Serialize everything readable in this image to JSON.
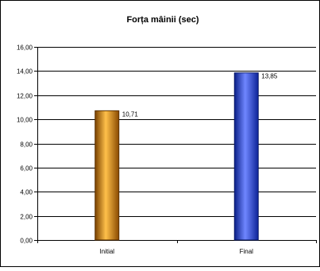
{
  "chart_data": {
    "type": "bar",
    "title": "Forța mâinii (sec)",
    "categories": [
      "Initial",
      "Final"
    ],
    "values": [
      10.71,
      13.85
    ],
    "value_labels": [
      "10,71",
      "13,85"
    ],
    "ylim": [
      0,
      16
    ],
    "y_ticks": [
      0,
      2,
      4,
      6,
      8,
      10,
      12,
      14,
      16
    ],
    "y_tick_labels": [
      "0,00",
      "2,00",
      "4,00",
      "6,00",
      "8,00",
      "10,00",
      "12,00",
      "14,00",
      "16,00"
    ],
    "xlabel": "",
    "ylabel": "",
    "grid": true,
    "legend": "none",
    "colors": {
      "bars": [
        "#f08c00",
        "#3355ee"
      ],
      "bar_edges": [
        "#5a3000",
        "#0a1a66"
      ],
      "grid": "#000000",
      "border": "#000000"
    }
  }
}
